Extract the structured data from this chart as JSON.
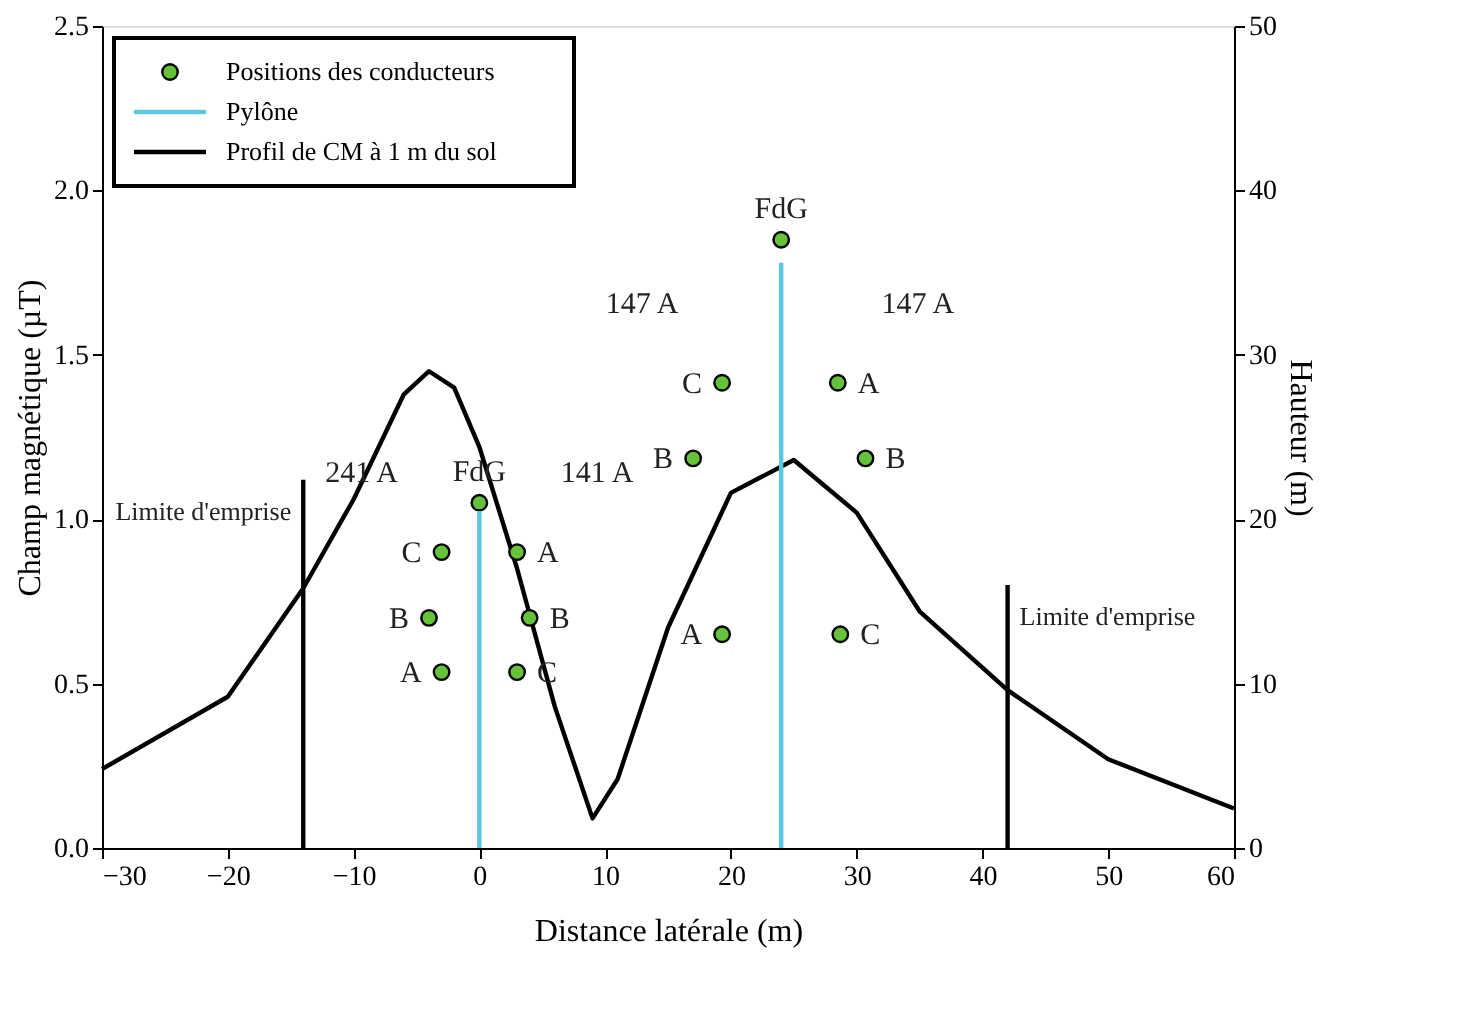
{
  "chart_data": {
    "type": "line",
    "xlabel": "Distance latérale (m)",
    "ylabel": "Champ magnétique (µT)",
    "y2label": "Hauteur (m)",
    "xlim": [
      -30,
      60
    ],
    "xticks": [
      -30,
      -20,
      -10,
      0,
      10,
      20,
      30,
      40,
      50,
      60
    ],
    "ylim": [
      0,
      2.5
    ],
    "yticks": [
      {
        "value": 0,
        "label": "0.0"
      },
      0.5,
      {
        "value": 1,
        "label": "1.0"
      },
      1.5,
      {
        "value": 2,
        "label": "2.0"
      },
      2.5
    ],
    "y2lim": [
      0,
      50
    ],
    "y2ticks": [
      0,
      10,
      20,
      30,
      40,
      50
    ],
    "grid": false,
    "legend": "top left",
    "series": [
      {
        "name": "Positions des conducteurs",
        "type": "scatter",
        "axis": "y2",
        "marker": "circle",
        "color": "#66c23a",
        "x": [
          0,
          -3,
          3,
          -4,
          4,
          -3,
          3,
          24,
          19.3,
          28.5,
          17,
          30.7,
          19.3,
          28.7
        ],
        "values": [
          21,
          18,
          18,
          14,
          14,
          10.7,
          10.7,
          37,
          28.3,
          28.3,
          23.7,
          23.7,
          13,
          13
        ],
        "value_labels": [
          "FdG",
          "C",
          "A",
          "B",
          "B",
          "A",
          "C",
          "FdG",
          "C",
          "A",
          "B",
          "B",
          "A",
          "C"
        ]
      },
      {
        "name": "Pylône",
        "type": "line",
        "axis": "y2",
        "color": "#5bc8e0",
        "line_style": "solid",
        "x": [
          0,
          0,
          null,
          24,
          24
        ],
        "values": [
          0,
          20.5,
          null,
          0,
          35.6
        ]
      },
      {
        "name": "Profil de CM à 1 m du sol",
        "type": "line",
        "color": "#000000",
        "line_style": "solid",
        "x": [
          -30,
          -20,
          -14,
          -10,
          -6,
          -4,
          -2,
          0,
          3,
          6,
          9,
          11,
          15,
          20,
          25,
          30,
          35,
          42,
          50,
          60
        ],
        "values": [
          0.24,
          0.46,
          0.79,
          1.06,
          1.38,
          1.45,
          1.4,
          1.22,
          0.85,
          0.43,
          0.09,
          0.21,
          0.67,
          1.08,
          1.18,
          1.02,
          0.72,
          0.48,
          0.27,
          0.12
        ]
      },
      {
        "color": "#000000",
        "line_style": "solid",
        "x": [
          -14,
          -14
        ],
        "values": [
          0,
          1.12
        ]
      },
      {
        "color": "#000000",
        "line_style": "solid",
        "x": [
          42,
          42
        ],
        "values": [
          0,
          0.8
        ]
      }
    ],
    "annotations": [
      "241 A",
      "141 A",
      "147 A",
      "147 A",
      {
        "text": "Limite d'emprise",
        "x": -14,
        "y": 1.12
      },
      {
        "text": "Limite d'emprise",
        "x": 42,
        "y": 0.8
      }
    ]
  }
}
